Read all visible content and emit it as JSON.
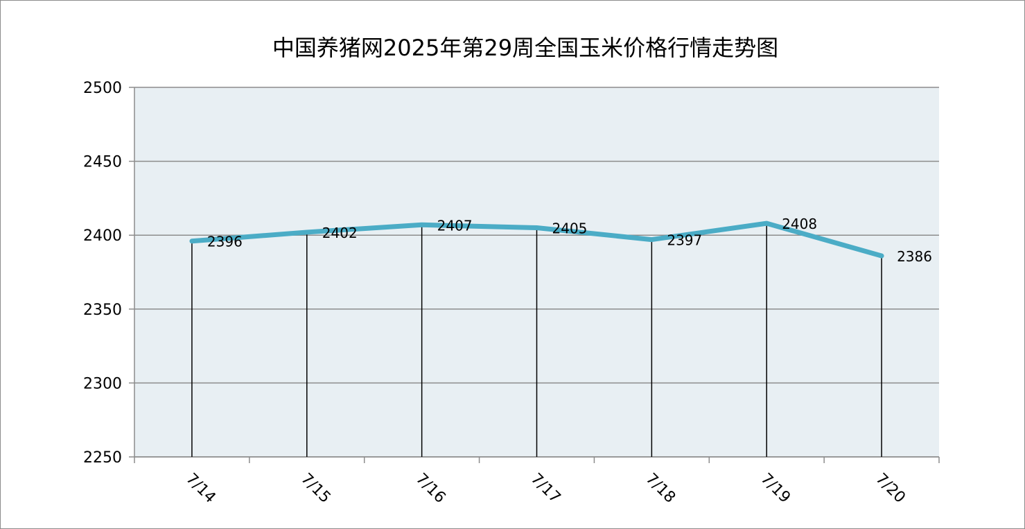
{
  "chart_data": {
    "type": "line",
    "title": "中国养猪网2025年第29周全国玉米价格行情走势图",
    "categories": [
      "7/14",
      "7/15",
      "7/16",
      "7/17",
      "7/18",
      "7/19",
      "7/20"
    ],
    "values": [
      2396,
      2402,
      2407,
      2405,
      2397,
      2408,
      2386
    ],
    "data_labels": [
      "2396",
      "2402",
      "2407",
      "2405",
      "2397",
      "2408",
      "2386"
    ],
    "ylim": [
      2250,
      2500
    ],
    "yticks": [
      2250,
      2300,
      2350,
      2400,
      2450,
      2500
    ],
    "ytick_labels": [
      "2250",
      "2300",
      "2350",
      "2400",
      "2450",
      "2500"
    ],
    "grid": true,
    "drop_lines": true,
    "colors": {
      "line": "#4bacc6",
      "plot_bg": "#e8eff3",
      "grid": "#8c8c8c",
      "drop_line": "#000000"
    }
  }
}
